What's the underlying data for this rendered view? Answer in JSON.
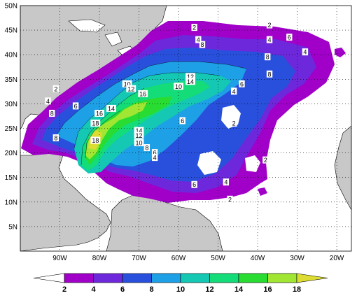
{
  "map": {
    "lat_labels": [
      "5N",
      "10N",
      "15N",
      "20N",
      "25N",
      "30N",
      "35N",
      "40N",
      "45N",
      "50N"
    ],
    "lon_labels": [
      "90W",
      "80W",
      "70W",
      "60W",
      "50W",
      "40W",
      "30W",
      "20W"
    ],
    "lat_values": [
      5,
      10,
      15,
      20,
      25,
      30,
      35,
      40,
      45,
      50
    ],
    "lon_values": [
      -90,
      -80,
      -70,
      -60,
      -50,
      -40,
      -30,
      -20
    ],
    "extent": {
      "lon_min": -100,
      "lon_max": -16.3,
      "lat_min": 0,
      "lat_max": 50
    },
    "ocean_color": "#ffffff",
    "land_color": "#c8c8c8",
    "grid": "dotted"
  },
  "colorbar": {
    "levels": [
      "2",
      "4",
      "6",
      "8",
      "10",
      "12",
      "14",
      "16",
      "18"
    ],
    "colors": [
      "#ffffff",
      "#a000c8",
      "#6e28dc",
      "#2850dc",
      "#1ea0e6",
      "#14c8b4",
      "#14dc78",
      "#28dc32",
      "#a0e632",
      "#dcdc32"
    ]
  },
  "contour_labels": [
    {
      "text": "2",
      "lon": -56,
      "lat": 45.5
    },
    {
      "text": "2",
      "lon": -37,
      "lat": 46
    },
    {
      "text": "4",
      "lon": -55,
      "lat": 43
    },
    {
      "text": "8",
      "lon": -54,
      "lat": 42
    },
    {
      "text": "4",
      "lon": -37,
      "lat": 43
    },
    {
      "text": "6",
      "lon": -32,
      "lat": 43.5
    },
    {
      "text": "4",
      "lon": -28,
      "lat": 40.5
    },
    {
      "text": "8",
      "lon": -37.5,
      "lat": 39.5
    },
    {
      "text": "2",
      "lon": -91,
      "lat": 33
    },
    {
      "text": "10",
      "lon": -73,
      "lat": 34
    },
    {
      "text": "12",
      "lon": -72,
      "lat": 33
    },
    {
      "text": "10",
      "lon": -60,
      "lat": 33.5
    },
    {
      "text": "12",
      "lon": -57,
      "lat": 35.5
    },
    {
      "text": "14",
      "lon": -57,
      "lat": 34.5
    },
    {
      "text": "6",
      "lon": -44,
      "lat": 34
    },
    {
      "text": "8",
      "lon": -37,
      "lat": 36
    },
    {
      "text": "4",
      "lon": -46,
      "lat": 32.5
    },
    {
      "text": "16",
      "lon": -69,
      "lat": 32
    },
    {
      "text": "4",
      "lon": -93,
      "lat": 30.5
    },
    {
      "text": "6",
      "lon": -86,
      "lat": 29.5
    },
    {
      "text": "14",
      "lon": -77,
      "lat": 29
    },
    {
      "text": "8",
      "lon": -92,
      "lat": 28
    },
    {
      "text": "16",
      "lon": -80,
      "lat": 28
    },
    {
      "text": "6",
      "lon": -59,
      "lat": 26.5
    },
    {
      "text": "2",
      "lon": -46,
      "lat": 26
    },
    {
      "text": "18",
      "lon": -81,
      "lat": 26
    },
    {
      "text": "14",
      "lon": -70,
      "lat": 24.5
    },
    {
      "text": "12",
      "lon": -70,
      "lat": 23.5
    },
    {
      "text": "8",
      "lon": -91,
      "lat": 23
    },
    {
      "text": "18",
      "lon": -81,
      "lat": 22.5
    },
    {
      "text": "10",
      "lon": -70,
      "lat": 22
    },
    {
      "text": "8",
      "lon": -68,
      "lat": 21
    },
    {
      "text": "6",
      "lon": -66,
      "lat": 20
    },
    {
      "text": "4",
      "lon": -66,
      "lat": 19
    },
    {
      "text": "2",
      "lon": -38,
      "lat": 18.5
    },
    {
      "text": "4",
      "lon": -48,
      "lat": 14
    },
    {
      "text": "6",
      "lon": -56,
      "lat": 13.5
    },
    {
      "text": "2",
      "lon": -47,
      "lat": 10.5
    }
  ]
}
